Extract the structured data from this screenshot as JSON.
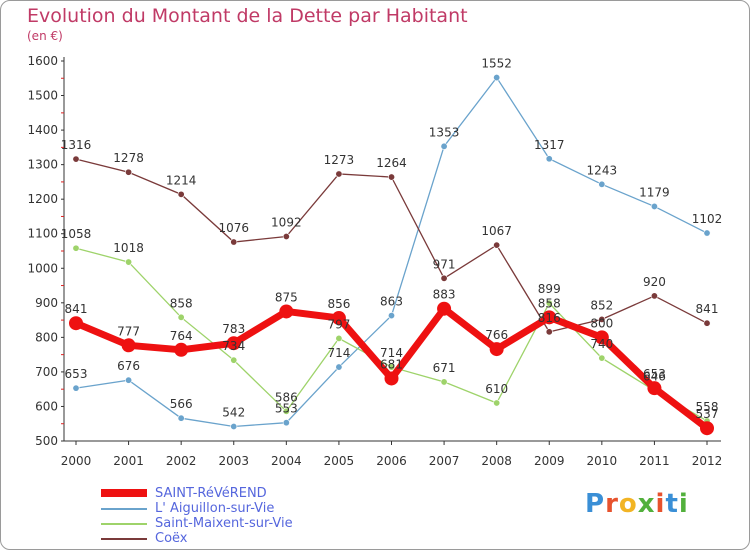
{
  "header": {
    "title": "Evolution du Montant de la Dette par Habitant",
    "subtitle": "(en €)"
  },
  "logo": {
    "letters": [
      "P",
      "r",
      "o",
      "x",
      "i",
      "t",
      "i"
    ],
    "colors": [
      "#3a8fd6",
      "#e7522d",
      "#f2b424",
      "#52b03c",
      "#e7522d",
      "#3a8fd6",
      "#52b03c"
    ]
  },
  "chart_data": {
    "type": "line",
    "title": "Evolution du Montant de la Dette par Habitant",
    "subtitle": "(en €)",
    "x": [
      "2000",
      "2001",
      "2002",
      "2003",
      "2004",
      "2005",
      "2006",
      "2007",
      "2008",
      "2009",
      "2010",
      "2011",
      "2012"
    ],
    "ylim": [
      500,
      1600
    ],
    "yticks": [
      500,
      600,
      700,
      800,
      900,
      1000,
      1100,
      1200,
      1300,
      1400,
      1500,
      1600
    ],
    "grid": false,
    "legend_position": "bottom-left",
    "series": [
      {
        "name": "SAINT-RéVéREND",
        "color": "#ee1111",
        "emphasized": true,
        "values": [
          841,
          777,
          764,
          783,
          875,
          856,
          681,
          883,
          766,
          858,
          800,
          653,
          537
        ],
        "labels": [
          "841",
          "777",
          "764",
          "783",
          "875",
          "856",
          "681",
          "883",
          "766",
          "858",
          "800",
          "653",
          "537"
        ]
      },
      {
        "name": "L' Aiguillon-sur-Vie",
        "color": "#6aa3cc",
        "values": [
          653,
          676,
          566,
          542,
          553,
          714,
          863,
          1353,
          1552,
          1317,
          1243,
          1179,
          1102
        ],
        "labels": [
          "653",
          "676",
          "566",
          "542",
          "553",
          "714",
          "863",
          "1353",
          "1552",
          "1317",
          "1243",
          "1179",
          "1102"
        ]
      },
      {
        "name": "Saint-Maixent-sur-Vie",
        "color": "#9ed36a",
        "values": [
          1058,
          1018,
          858,
          734,
          586,
          797,
          714,
          671,
          610,
          899,
          740,
          646,
          558
        ],
        "labels": [
          "1058",
          "1018",
          "858",
          "734",
          "586",
          "797",
          "714",
          "671",
          "610",
          "899",
          "740",
          "646",
          "558"
        ]
      },
      {
        "name": "Coëx",
        "color": "#7a3a3a",
        "values": [
          1316,
          1278,
          1214,
          1076,
          1092,
          1273,
          1264,
          971,
          1067,
          816,
          852,
          920,
          841
        ],
        "labels": [
          "1316",
          "1278",
          "1214",
          "1076",
          "1092",
          "1273",
          "1264",
          "971",
          "1067",
          "816",
          "852",
          "920",
          "841"
        ]
      }
    ]
  }
}
